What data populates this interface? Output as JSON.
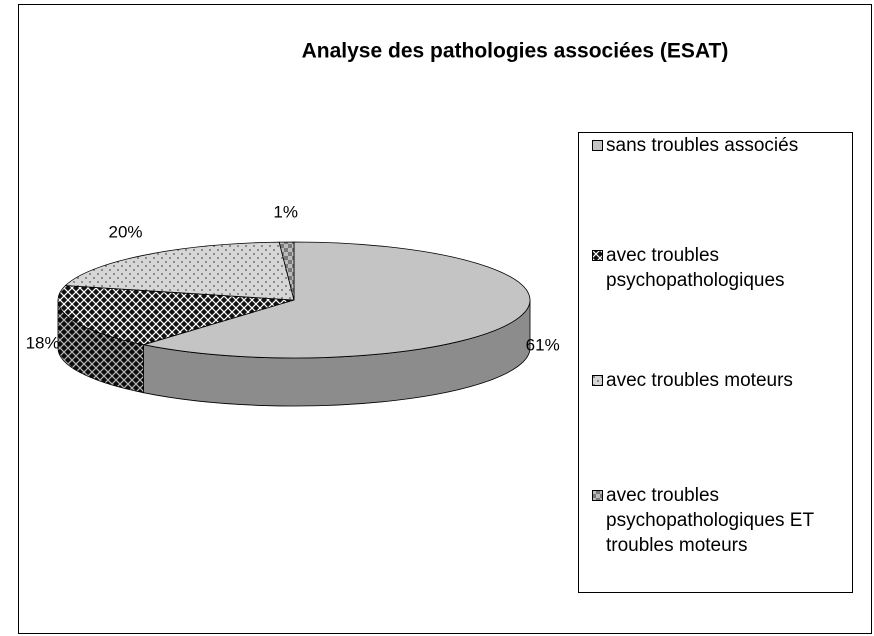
{
  "chart_data": {
    "type": "pie3d",
    "title": "Analyse des pathologies associées (ESAT)",
    "categories": [
      "sans troubles associés",
      "avec troubles psychopathologiques",
      "avec troubles moteurs",
      "avec troubles psychopathologiques ET troubles moteurs"
    ],
    "values": [
      61,
      18,
      20,
      1
    ],
    "value_labels": [
      "61%",
      "18%",
      "20%",
      "1%"
    ],
    "colors": [
      "#c4c4c4",
      "#111111",
      "#d6d6d6",
      "#7a7a7a"
    ],
    "patterns": [
      "solid",
      "crosshatch",
      "dots",
      "checks"
    ],
    "legend": "right"
  }
}
